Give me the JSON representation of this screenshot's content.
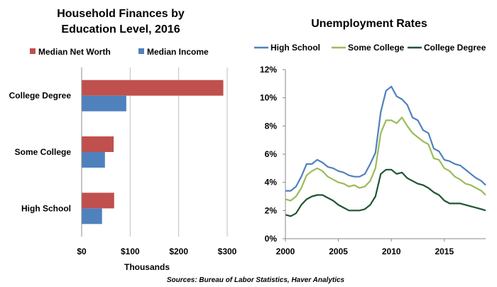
{
  "chart_data": [
    {
      "type": "bar",
      "orientation": "horizontal",
      "title_lines": [
        "Household Finances by",
        "Education Level, 2016"
      ],
      "categories": [
        "College Degree",
        "Some College",
        "High School"
      ],
      "series": [
        {
          "name": "Median Net Worth",
          "color": "#c0504d",
          "values": [
            292,
            66,
            67
          ]
        },
        {
          "name": "Median Income",
          "color": "#4f81bd",
          "values": [
            92,
            48,
            42
          ]
        }
      ],
      "xlim": [
        0,
        300
      ],
      "x_ticks": [
        0,
        100,
        200,
        300
      ],
      "x_tick_labels": [
        "$0",
        "$100",
        "$200",
        "$300"
      ],
      "xlabel": "Thousands",
      "legend": "top",
      "grid": "vertical"
    },
    {
      "type": "line",
      "title": "Unemployment Rates",
      "xlim": [
        2000,
        2018.9
      ],
      "ylim": [
        0,
        12
      ],
      "x_ticks": [
        2000,
        2005,
        2010,
        2015
      ],
      "x_tick_labels": [
        "2000",
        "2005",
        "2010",
        "2015"
      ],
      "y_ticks": [
        0,
        2,
        4,
        6,
        8,
        10,
        12
      ],
      "y_tick_labels": [
        "0%",
        "2%",
        "4%",
        "6%",
        "8%",
        "10%",
        "12%"
      ],
      "legend": "top",
      "grid": "none",
      "series": [
        {
          "name": "High School",
          "color": "#4f81bd",
          "x": [
            2000,
            2000.5,
            2001,
            2001.5,
            2002,
            2002.5,
            2003,
            2003.5,
            2004,
            2004.5,
            2005,
            2005.5,
            2006,
            2006.5,
            2007,
            2007.5,
            2008,
            2008.5,
            2009,
            2009.5,
            2010,
            2010.5,
            2011,
            2011.5,
            2012,
            2012.5,
            2013,
            2013.5,
            2014,
            2014.5,
            2015,
            2015.5,
            2016,
            2016.5,
            2017,
            2017.5,
            2018,
            2018.5,
            2018.9
          ],
          "values": [
            3.4,
            3.4,
            3.7,
            4.4,
            5.3,
            5.3,
            5.6,
            5.4,
            5.1,
            5.0,
            4.8,
            4.7,
            4.5,
            4.4,
            4.4,
            4.6,
            5.3,
            6.1,
            9.0,
            10.5,
            10.8,
            10.1,
            9.9,
            9.5,
            8.6,
            8.4,
            7.7,
            7.5,
            6.4,
            6.2,
            5.6,
            5.5,
            5.3,
            5.2,
            4.9,
            4.6,
            4.3,
            4.1,
            3.8
          ]
        },
        {
          "name": "Some College",
          "color": "#9bbb59",
          "x": [
            2000,
            2000.5,
            2001,
            2001.5,
            2002,
            2002.5,
            2003,
            2003.5,
            2004,
            2004.5,
            2005,
            2005.5,
            2006,
            2006.5,
            2007,
            2007.5,
            2008,
            2008.5,
            2009,
            2009.5,
            2010,
            2010.5,
            2011,
            2011.5,
            2012,
            2012.5,
            2013,
            2013.5,
            2014,
            2014.5,
            2015,
            2015.5,
            2016,
            2016.5,
            2017,
            2017.5,
            2018,
            2018.5,
            2018.9
          ],
          "values": [
            2.8,
            2.7,
            3.0,
            3.6,
            4.5,
            4.8,
            5.0,
            4.8,
            4.4,
            4.2,
            4.0,
            3.9,
            3.7,
            3.8,
            3.6,
            3.7,
            4.1,
            5.0,
            7.5,
            8.4,
            8.4,
            8.2,
            8.6,
            8.0,
            7.5,
            7.2,
            6.9,
            6.7,
            5.7,
            5.6,
            5.0,
            4.8,
            4.4,
            4.2,
            3.9,
            3.8,
            3.6,
            3.4,
            3.1
          ]
        },
        {
          "name": "College Degree",
          "color": "#1e5631",
          "x": [
            2000,
            2000.5,
            2001,
            2001.5,
            2002,
            2002.5,
            2003,
            2003.5,
            2004,
            2004.5,
            2005,
            2005.5,
            2006,
            2006.5,
            2007,
            2007.5,
            2008,
            2008.5,
            2009,
            2009.5,
            2010,
            2010.5,
            2011,
            2011.5,
            2012,
            2012.5,
            2013,
            2013.5,
            2014,
            2014.5,
            2015,
            2015.5,
            2016,
            2016.5,
            2017,
            2017.5,
            2018,
            2018.5,
            2018.9
          ],
          "values": [
            1.7,
            1.6,
            1.8,
            2.4,
            2.8,
            3.0,
            3.1,
            3.1,
            2.9,
            2.7,
            2.4,
            2.2,
            2.0,
            2.0,
            2.0,
            2.1,
            2.4,
            3.0,
            4.6,
            4.9,
            4.9,
            4.6,
            4.7,
            4.3,
            4.1,
            3.9,
            3.8,
            3.6,
            3.3,
            3.1,
            2.7,
            2.5,
            2.5,
            2.5,
            2.4,
            2.3,
            2.2,
            2.1,
            2.0
          ]
        }
      ]
    }
  ],
  "source_note": "Sources: Bureau of Labor Statistics, Haver Analytics"
}
